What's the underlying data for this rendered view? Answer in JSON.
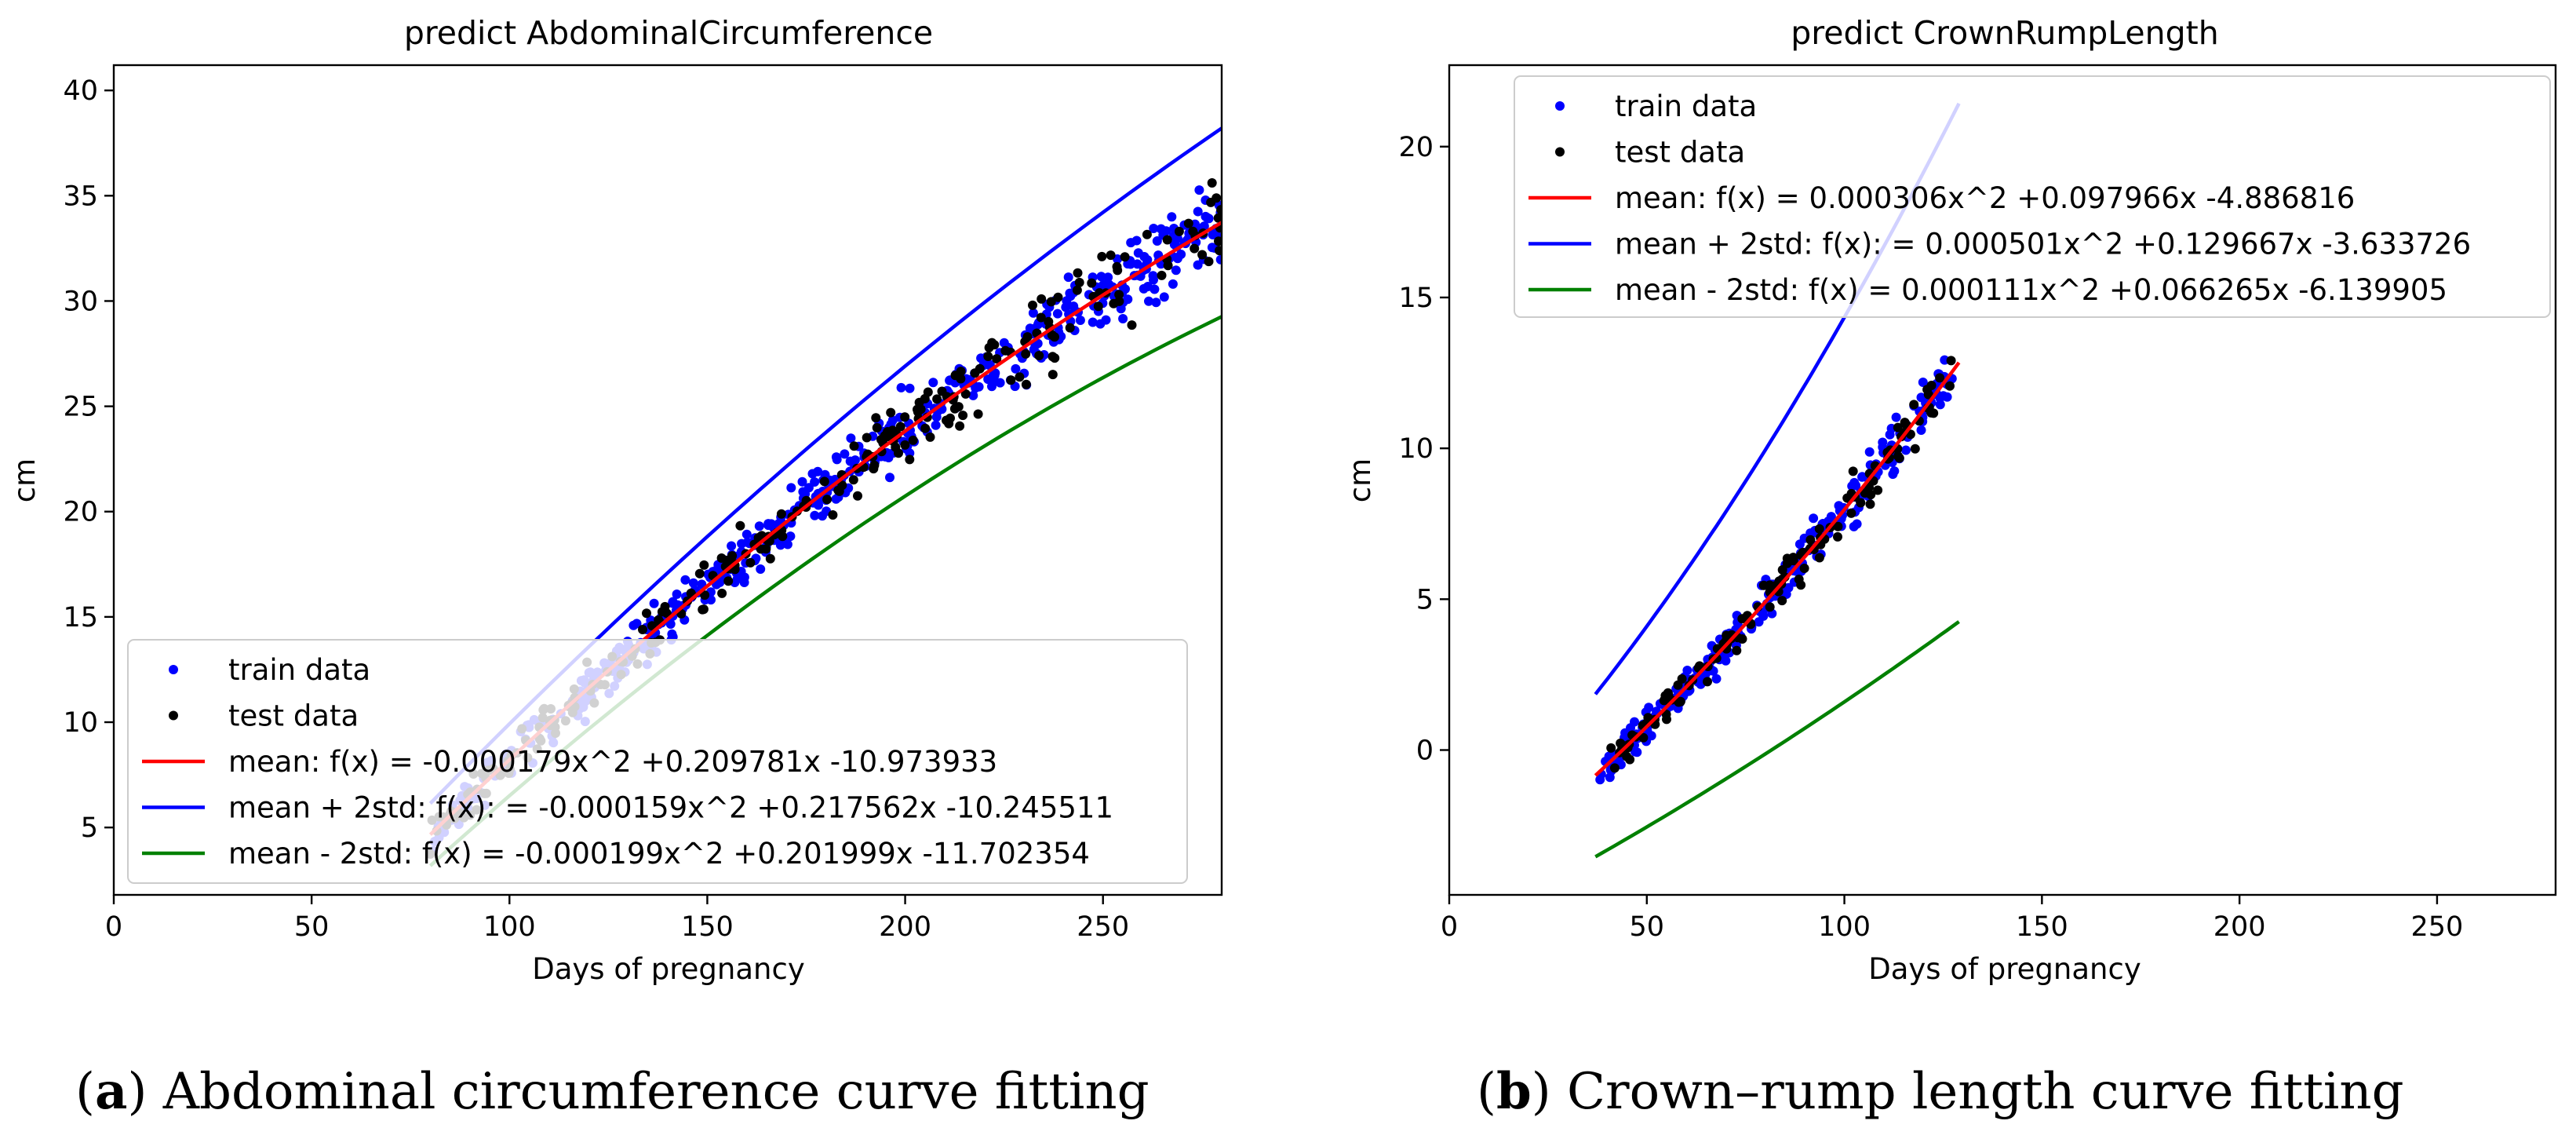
{
  "chart_data": [
    {
      "type": "scatter",
      "title": "predict AbdominalCircumference",
      "xlabel": "Days of pregnancy",
      "ylabel": "cm",
      "xlim": [
        0,
        280
      ],
      "ylim": [
        1.8,
        41.2
      ],
      "xticks": [
        0,
        50,
        100,
        150,
        200,
        250
      ],
      "yticks": [
        5,
        10,
        15,
        20,
        25,
        30,
        35,
        40
      ],
      "legend_position": "lower-right",
      "colors": {
        "train": "#0000ff",
        "test": "#000000",
        "mean": "#ff0000",
        "upper": "#0000ff",
        "lower": "#008000"
      },
      "legend": [
        "train data",
        "test data",
        "mean: f(x) = -0.000179x^2 +0.209781x -10.973933",
        "mean + 2std: f(x): = -0.000159x^2 +0.217562x -10.245511",
        "mean - 2std: f(x) = -0.000199x^2 +0.201999x -11.702354"
      ],
      "series": [
        {
          "name": "mean",
          "a": -0.000179,
          "b": 0.209781,
          "c": -10.973933,
          "x_range": [
            80,
            280
          ]
        },
        {
          "name": "mean + 2std",
          "a": -0.000159,
          "b": 0.217562,
          "c": -10.245511,
          "x_range": [
            80,
            280
          ]
        },
        {
          "name": "mean - 2std",
          "a": -0.000199,
          "b": 0.201999,
          "c": -11.702354,
          "x_range": [
            80,
            280
          ]
        }
      ],
      "scatter": {
        "x_range": [
          80,
          280
        ],
        "spread": 1.1,
        "train_count": 520,
        "test_count": 260
      }
    },
    {
      "type": "scatter",
      "title": "predict CrownRumpLength",
      "xlabel": "Days of pregnancy",
      "ylabel": "cm",
      "xlim": [
        0,
        280
      ],
      "ylim": [
        -4.8,
        22.7
      ],
      "xticks": [
        0,
        50,
        100,
        150,
        200,
        250
      ],
      "yticks": [
        0,
        5,
        10,
        15,
        20
      ],
      "legend_position": "upper-right",
      "colors": {
        "train": "#0000ff",
        "test": "#000000",
        "mean": "#ff0000",
        "upper": "#0000ff",
        "lower": "#008000"
      },
      "legend": [
        "train data",
        "test data",
        "mean: f(x) = 0.000306x^2 +0.097966x -4.886816",
        "mean + 2std: f(x): = 0.000501x^2 +0.129667x -3.633726",
        "mean - 2std: f(x) = 0.000111x^2 +0.066265x -6.139905"
      ],
      "series": [
        {
          "name": "mean",
          "a": 0.000306,
          "b": 0.097966,
          "c": -4.886816,
          "x_range": [
            37,
            129
          ]
        },
        {
          "name": "mean + 2std",
          "a": 0.000501,
          "b": 0.129667,
          "c": -3.633726,
          "x_range": [
            37,
            129
          ]
        },
        {
          "name": "mean - 2std",
          "a": 0.000111,
          "b": 0.066265,
          "c": -6.139905,
          "x_range": [
            37,
            129
          ]
        }
      ],
      "scatter": {
        "x_range": [
          38,
          128
        ],
        "spread": 0.55,
        "train_count": 260,
        "test_count": 130
      }
    }
  ],
  "captions": [
    {
      "label": "a",
      "text": " Abdominal circumference curve fitting"
    },
    {
      "label": "b",
      "text": " Crown–rump length curve fitting"
    }
  ]
}
